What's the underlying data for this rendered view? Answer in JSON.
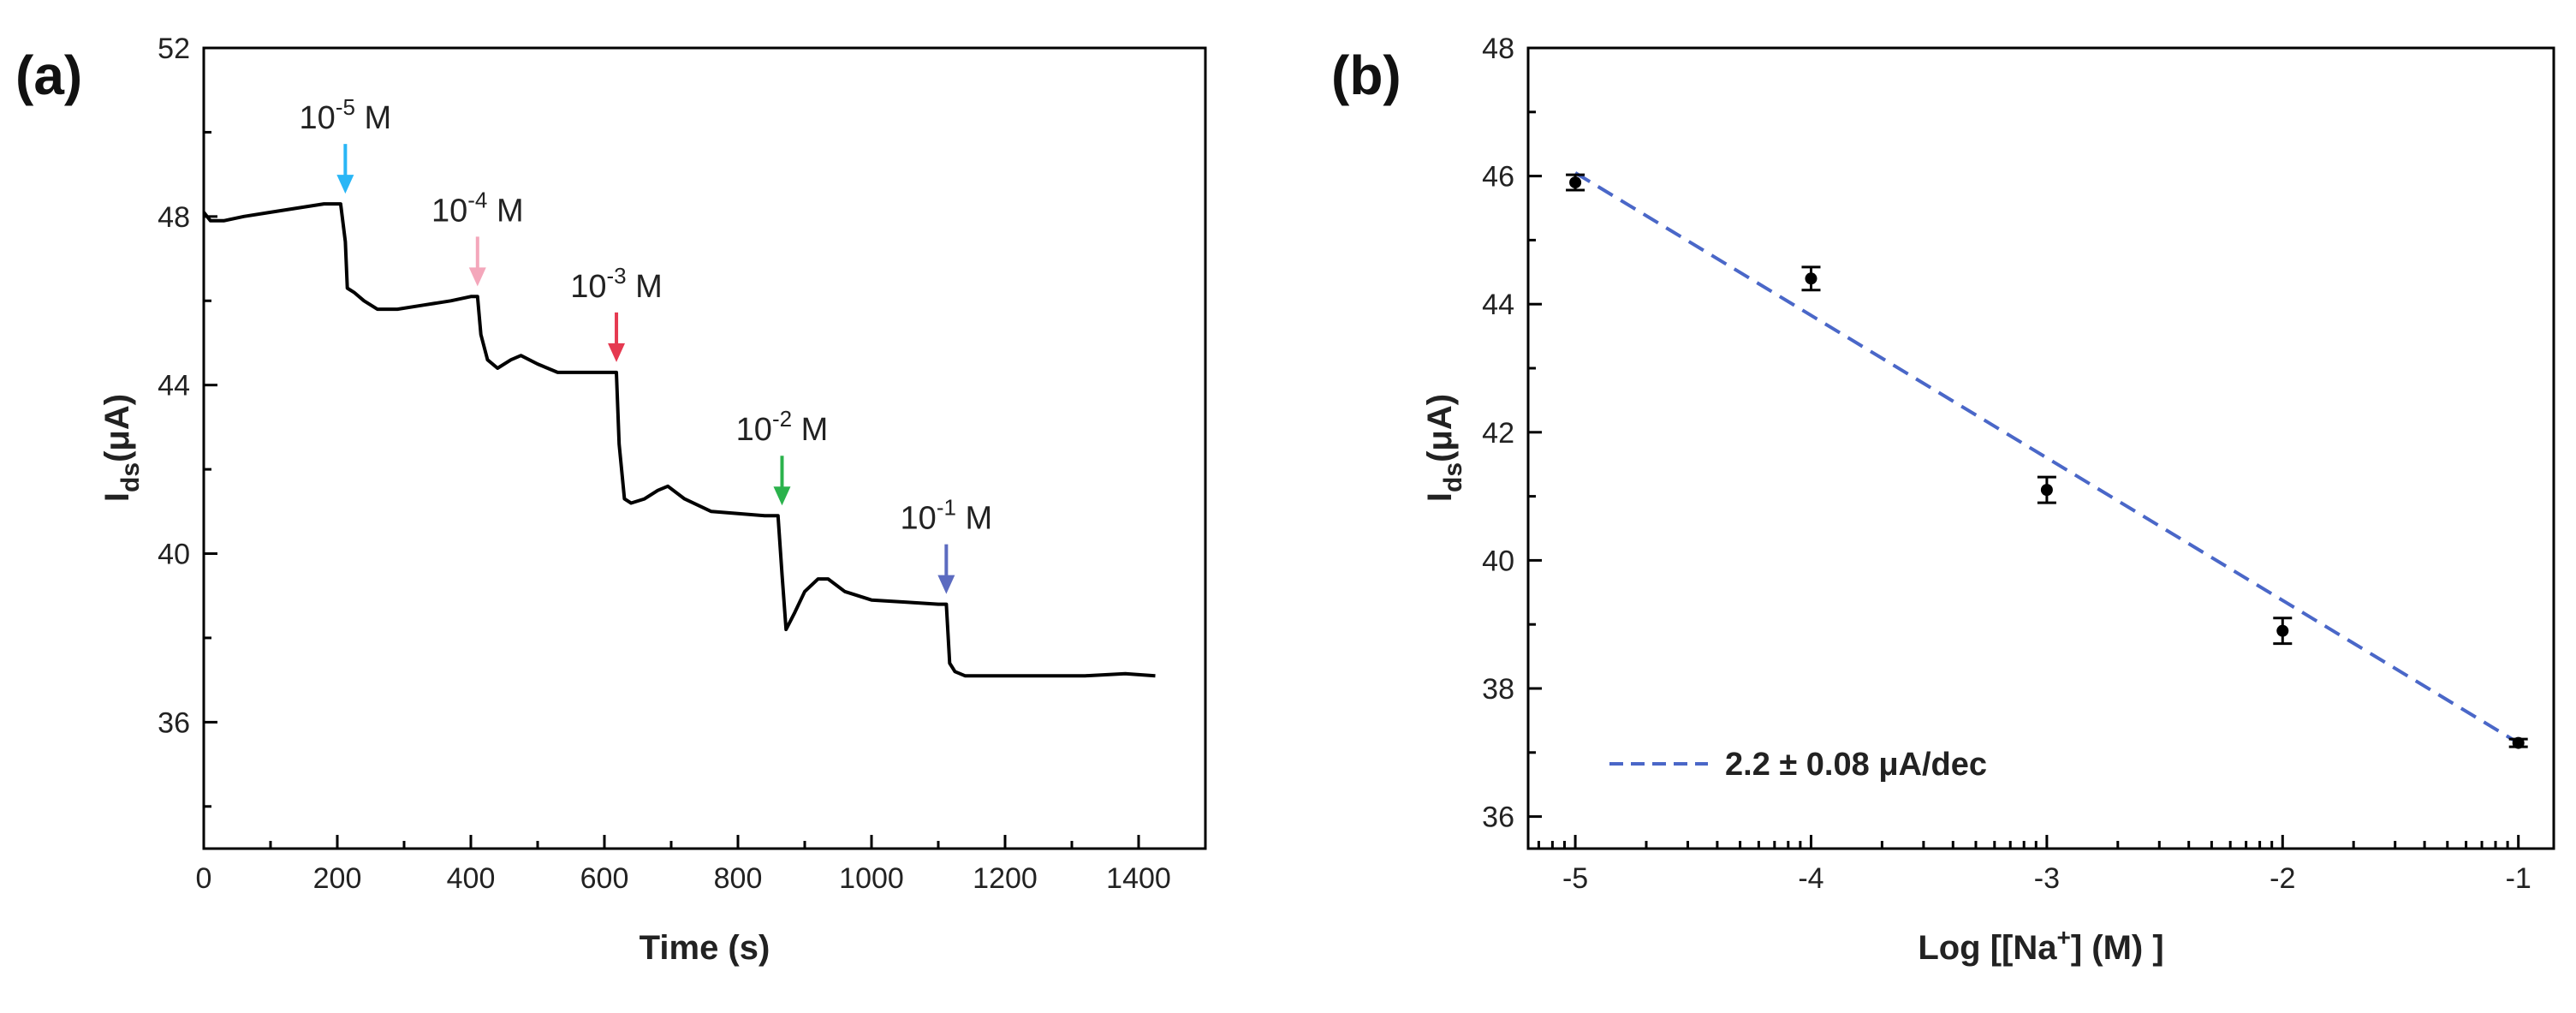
{
  "chart_data": [
    {
      "panel": "(a)",
      "type": "line",
      "title": "",
      "xlabel": "Time (s)",
      "ylabel_main": "I",
      "ylabel_sub": "ds",
      "ylabel_tail": "(μA)",
      "xlim": [
        0,
        1500
      ],
      "ylim": [
        33,
        52
      ],
      "xticks": [
        0,
        200,
        400,
        600,
        800,
        1000,
        1200,
        1400
      ],
      "yticks": [
        36,
        40,
        44,
        48,
        52
      ],
      "grid": false,
      "series": [
        {
          "name": "Ids",
          "color": "#000000",
          "x": [
            0,
            10,
            30,
            60,
            100,
            140,
            180,
            205,
            212,
            215,
            225,
            240,
            260,
            290,
            330,
            370,
            400,
            410,
            415,
            425,
            440,
            460,
            475,
            500,
            530,
            570,
            600,
            618,
            622,
            630,
            640,
            660,
            680,
            695,
            720,
            760,
            800,
            840,
            860,
            866,
            872,
            885,
            900,
            920,
            935,
            960,
            1000,
            1050,
            1100,
            1112,
            1117,
            1125,
            1140,
            1160,
            1200,
            1260,
            1320,
            1380,
            1425
          ],
          "y": [
            48.1,
            47.9,
            47.9,
            48.0,
            48.1,
            48.2,
            48.3,
            48.3,
            47.4,
            46.3,
            46.2,
            46.0,
            45.8,
            45.8,
            45.9,
            46.0,
            46.1,
            46.1,
            45.2,
            44.6,
            44.4,
            44.6,
            44.7,
            44.5,
            44.3,
            44.3,
            44.3,
            44.3,
            42.6,
            41.3,
            41.2,
            41.3,
            41.5,
            41.6,
            41.3,
            41.0,
            40.95,
            40.9,
            40.9,
            39.5,
            38.2,
            38.6,
            39.1,
            39.4,
            39.4,
            39.1,
            38.9,
            38.85,
            38.8,
            38.8,
            37.4,
            37.2,
            37.1,
            37.1,
            37.1,
            37.1,
            37.1,
            37.15,
            37.1
          ]
        }
      ],
      "annotations": [
        {
          "base": "10",
          "exp": "-5",
          "unit": " M",
          "x": 212,
          "y": 48.3,
          "color": "#29b6f6"
        },
        {
          "base": "10",
          "exp": "-4",
          "unit": " M",
          "x": 410,
          "y": 46.1,
          "color": "#f4a7bb"
        },
        {
          "base": "10",
          "exp": "-3",
          "unit": " M",
          "x": 618,
          "y": 44.3,
          "color": "#e53950"
        },
        {
          "base": "10",
          "exp": "-2",
          "unit": " M",
          "x": 866,
          "y": 40.9,
          "color": "#2bb24c"
        },
        {
          "base": "10",
          "exp": "-1",
          "unit": " M",
          "x": 1112,
          "y": 38.8,
          "color": "#5c6bc0"
        }
      ]
    },
    {
      "panel": "(b)",
      "type": "scatter",
      "title": "",
      "xlabel_pre": "Log [[Na",
      "xlabel_sup": "+",
      "xlabel_post": "] (M) ]",
      "ylabel_main": "I",
      "ylabel_sub": "ds",
      "ylabel_tail": "(μA)",
      "xlim": [
        -5.2,
        -0.85
      ],
      "ylim": [
        35.5,
        48
      ],
      "xticks": [
        -5,
        -4,
        -3,
        -2,
        -1
      ],
      "yticks": [
        36,
        38,
        40,
        42,
        44,
        46,
        48
      ],
      "grid": false,
      "series": [
        {
          "name": "data",
          "color": "#000000",
          "x": [
            -5,
            -4,
            -3,
            -2,
            -1
          ],
          "y": [
            45.9,
            44.4,
            41.1,
            38.9,
            37.15
          ],
          "yerr": [
            0.12,
            0.18,
            0.2,
            0.2,
            0.06
          ]
        },
        {
          "name": "fit",
          "color": "#4a67c8",
          "style": "dashed",
          "x": [
            -5,
            -1
          ],
          "y": [
            46.05,
            37.15
          ]
        }
      ],
      "legend": {
        "label": "2.2 ± 0.08 μA/dec",
        "placement": "bottom-left",
        "color": "#4a67c8"
      }
    }
  ]
}
